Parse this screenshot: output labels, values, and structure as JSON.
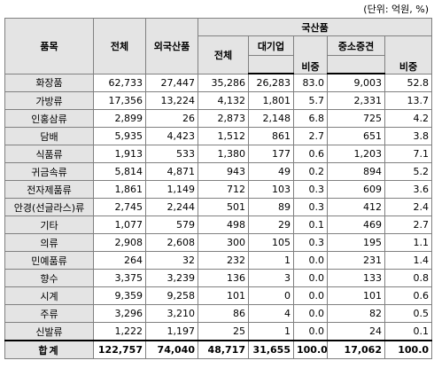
{
  "unit_note": "(단위: 억원, %)",
  "headers": {
    "item": "품목",
    "total": "전체",
    "foreign": "외국산품",
    "domestic": "국산품",
    "dom_total": "전체",
    "large": "대기업",
    "large_share": "비중",
    "sme": "중소중견",
    "sme_share": "비중"
  },
  "rows": [
    {
      "item": "화장품",
      "total": "62,733",
      "foreign": "27,447",
      "dom_total": "35,286",
      "large": "26,283",
      "large_share": "83.0",
      "sme": "9,003",
      "sme_share": "52.8"
    },
    {
      "item": "가방류",
      "total": "17,356",
      "foreign": "13,224",
      "dom_total": "4,132",
      "large": "1,801",
      "large_share": "5.7",
      "sme": "2,331",
      "sme_share": "13.7"
    },
    {
      "item": "인홍삼류",
      "total": "2,899",
      "foreign": "26",
      "dom_total": "2,873",
      "large": "2,148",
      "large_share": "6.8",
      "sme": "725",
      "sme_share": "4.2"
    },
    {
      "item": "담배",
      "total": "5,935",
      "foreign": "4,423",
      "dom_total": "1,512",
      "large": "861",
      "large_share": "2.7",
      "sme": "651",
      "sme_share": "3.8"
    },
    {
      "item": "식품류",
      "total": "1,913",
      "foreign": "533",
      "dom_total": "1,380",
      "large": "177",
      "large_share": "0.6",
      "sme": "1,203",
      "sme_share": "7.1"
    },
    {
      "item": "귀금속류",
      "total": "5,814",
      "foreign": "4,871",
      "dom_total": "943",
      "large": "49",
      "large_share": "0.2",
      "sme": "894",
      "sme_share": "5.2"
    },
    {
      "item": "전자제품류",
      "total": "1,861",
      "foreign": "1,149",
      "dom_total": "712",
      "large": "103",
      "large_share": "0.3",
      "sme": "609",
      "sme_share": "3.6"
    },
    {
      "item": "안경(선글라스)류",
      "total": "2,745",
      "foreign": "2,244",
      "dom_total": "501",
      "large": "89",
      "large_share": "0.3",
      "sme": "412",
      "sme_share": "2.4"
    },
    {
      "item": "기타",
      "total": "1,077",
      "foreign": "579",
      "dom_total": "498",
      "large": "29",
      "large_share": "0.1",
      "sme": "469",
      "sme_share": "2.7"
    },
    {
      "item": "의류",
      "total": "2,908",
      "foreign": "2,608",
      "dom_total": "300",
      "large": "105",
      "large_share": "0.3",
      "sme": "195",
      "sme_share": "1.1"
    },
    {
      "item": "민예품류",
      "total": "264",
      "foreign": "32",
      "dom_total": "232",
      "large": "1",
      "large_share": "0.0",
      "sme": "231",
      "sme_share": "1.4"
    },
    {
      "item": "향수",
      "total": "3,375",
      "foreign": "3,239",
      "dom_total": "136",
      "large": "3",
      "large_share": "0.0",
      "sme": "133",
      "sme_share": "0.8"
    },
    {
      "item": "시계",
      "total": "9,359",
      "foreign": "9,258",
      "dom_total": "101",
      "large": "0",
      "large_share": "0.0",
      "sme": "101",
      "sme_share": "0.6"
    },
    {
      "item": "주류",
      "total": "3,296",
      "foreign": "3,210",
      "dom_total": "86",
      "large": "4",
      "large_share": "0.0",
      "sme": "82",
      "sme_share": "0.5"
    },
    {
      "item": "신발류",
      "total": "1,222",
      "foreign": "1,197",
      "dom_total": "25",
      "large": "1",
      "large_share": "0.0",
      "sme": "24",
      "sme_share": "0.1"
    }
  ],
  "total_row": {
    "item": "합계",
    "total": "122,757",
    "foreign": "74,040",
    "dom_total": "48,717",
    "large": "31,655",
    "large_share": "100.0",
    "sme": "17,062",
    "sme_share": "100.0"
  }
}
